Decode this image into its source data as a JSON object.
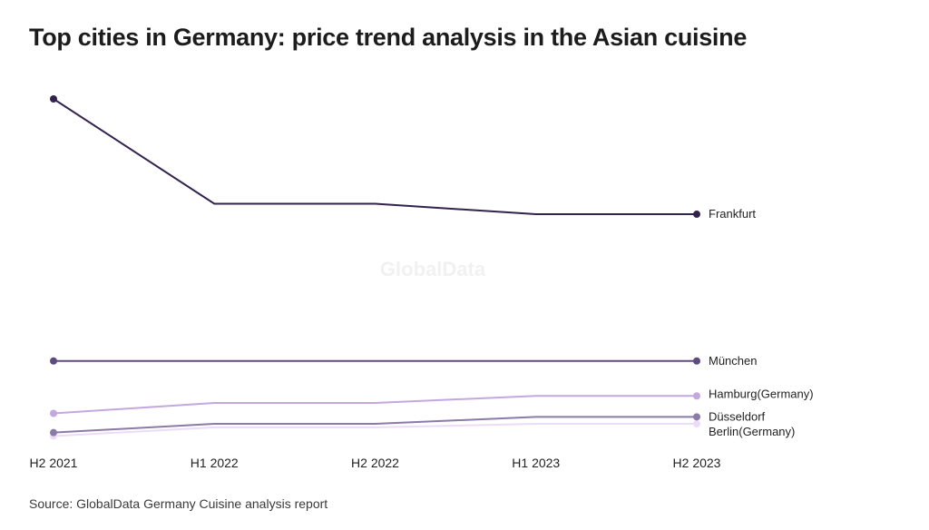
{
  "title": "Top cities in Germany: price trend analysis in the Asian cuisine",
  "source": "Source: GlobalData Germany Cuisine analysis report",
  "watermark": "GlobalData",
  "chart_data": {
    "type": "line",
    "title": "Top cities in Germany: price trend analysis in the Asian cuisine",
    "xlabel": "",
    "ylabel": "",
    "ylim": [
      0,
      100
    ],
    "grid": false,
    "legend": "end-of-line labels",
    "categories": [
      "H2 2021",
      "H1 2022",
      "H2 2022",
      "H1 2023",
      "H2 2023"
    ],
    "series": [
      {
        "name": "Frankfurt",
        "color": "#32234d",
        "values": [
          100,
          70,
          70,
          67,
          67
        ]
      },
      {
        "name": "München",
        "color": "#5e4a7e",
        "values": [
          25,
          25,
          25,
          25,
          25
        ]
      },
      {
        "name": "Hamburg(Germany)",
        "color": "#c3a8e0",
        "values": [
          10,
          13,
          13,
          15,
          15
        ]
      },
      {
        "name": "Düsseldorf",
        "color": "#8c7aa8",
        "values": [
          4.5,
          7,
          7,
          9,
          9
        ]
      },
      {
        "name": "Berlin(Germany)",
        "color": "#ecdcf8",
        "values": [
          3.5,
          6,
          6,
          7,
          7
        ]
      }
    ]
  }
}
